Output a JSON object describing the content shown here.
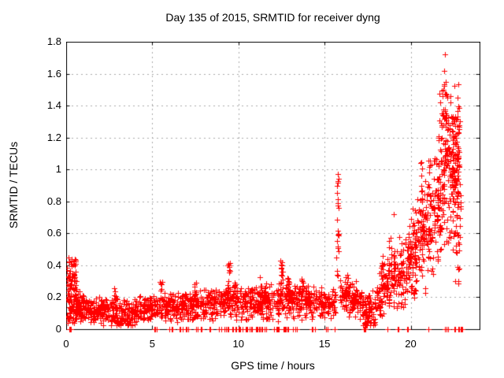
{
  "title": "Day 135 of 2015, SRMTID for receiver dyng",
  "chart_data": {
    "type": "scatter",
    "title": "Day 135 of 2015, SRMTID for receiver dyng",
    "xlabel": "GPS time / hours",
    "ylabel": "SRMTID / TECUs",
    "series_name": "SRMTID",
    "xlim": [
      0,
      24
    ],
    "ylim": [
      0,
      1.8
    ],
    "x_ticks": [
      0,
      5,
      10,
      15,
      20
    ],
    "x_tick_labels": [
      "0",
      "5",
      "10",
      "15",
      "20"
    ],
    "y_ticks": [
      0,
      0.2,
      0.4,
      0.6,
      0.8,
      1,
      1.2,
      1.4,
      1.6,
      1.8
    ],
    "y_tick_labels": [
      "0",
      "0.2",
      "0.4",
      "0.6",
      "0.8",
      "1",
      "1.2",
      "1.4",
      "1.6",
      "1.8"
    ],
    "grid": true,
    "grid_style": "dotted",
    "legend": "none",
    "marker": "plus",
    "marker_size_px": 7,
    "marker_color": "#ff0000",
    "grid_color": "#a8a8a8",
    "border_color": "#000000",
    "background": "#ffffff",
    "description": "Dense + marker scatter: flat noisy band ~0.1-0.2 TECUs from 0-15h, tall cluster 0.05-0.45 at 0-0.6h, isolated spike to 0.97 at 15.8h, dip near 17.5h, steep noisy rise after 19h peaking at 1.72 near 22h, data ends ~23h, many exact-zero points along the axis",
    "generator": {
      "seed": 1350,
      "bands": [
        {
          "x0": 0.05,
          "x1": 0.6,
          "n": 115,
          "y0": 0.24,
          "y1": 0.24,
          "s": 0.2,
          "u": 1
        },
        {
          "x0": 0.5,
          "x1": 1.3,
          "n": 90,
          "y0": 0.15,
          "y1": 0.13,
          "s": 0.05
        },
        {
          "x0": 1.3,
          "x1": 2.6,
          "n": 120,
          "y0": 0.12,
          "y1": 0.11,
          "s": 0.05
        },
        {
          "x0": 2.6,
          "x1": 4.0,
          "n": 140,
          "y0": 0.1,
          "y1": 0.1,
          "s": 0.05
        },
        {
          "x0": 4.0,
          "x1": 5.5,
          "n": 130,
          "y0": 0.12,
          "y1": 0.13,
          "s": 0.05
        },
        {
          "x0": 5.5,
          "x1": 7.0,
          "n": 130,
          "y0": 0.14,
          "y1": 0.14,
          "s": 0.05
        },
        {
          "x0": 7.0,
          "x1": 8.5,
          "n": 130,
          "y0": 0.15,
          "y1": 0.16,
          "s": 0.06
        },
        {
          "x0": 8.5,
          "x1": 10.0,
          "n": 130,
          "y0": 0.17,
          "y1": 0.17,
          "s": 0.06
        },
        {
          "x0": 10.0,
          "x1": 11.5,
          "n": 130,
          "y0": 0.17,
          "y1": 0.17,
          "s": 0.06
        },
        {
          "x0": 11.5,
          "x1": 13.0,
          "n": 130,
          "y0": 0.17,
          "y1": 0.18,
          "s": 0.07
        },
        {
          "x0": 13.0,
          "x1": 14.5,
          "n": 130,
          "y0": 0.18,
          "y1": 0.16,
          "s": 0.06
        },
        {
          "x0": 14.5,
          "x1": 15.65,
          "n": 100,
          "y0": 0.16,
          "y1": 0.17,
          "s": 0.05
        },
        {
          "x0": 15.9,
          "x1": 17.2,
          "n": 110,
          "y0": 0.21,
          "y1": 0.16,
          "s": 0.07
        },
        {
          "x0": 17.2,
          "x1": 18.0,
          "n": 80,
          "y0": 0.1,
          "y1": 0.12,
          "s": 0.07
        },
        {
          "x0": 18.0,
          "x1": 19.0,
          "n": 90,
          "y0": 0.2,
          "y1": 0.3,
          "s": 0.1
        },
        {
          "x0": 19.0,
          "x1": 20.0,
          "n": 110,
          "y0": 0.32,
          "y1": 0.4,
          "s": 0.13
        },
        {
          "x0": 20.0,
          "x1": 20.8,
          "n": 110,
          "y0": 0.45,
          "y1": 0.6,
          "s": 0.17
        },
        {
          "x0": 20.8,
          "x1": 21.6,
          "n": 110,
          "y0": 0.65,
          "y1": 0.8,
          "s": 0.22
        },
        {
          "x0": 21.6,
          "x1": 22.2,
          "n": 110,
          "y0": 0.9,
          "y1": 1.05,
          "s": 0.28
        },
        {
          "x0": 22.2,
          "x1": 22.9,
          "n": 130,
          "y0": 1.0,
          "y1": 1.0,
          "s": 0.32
        }
      ],
      "columns": [
        {
          "x": 2.85,
          "w": 0.12,
          "n": 8,
          "lo": 0.18,
          "hi": 0.3
        },
        {
          "x": 5.5,
          "w": 0.12,
          "n": 8,
          "lo": 0.18,
          "hi": 0.3
        },
        {
          "x": 6.9,
          "w": 0.12,
          "n": 6,
          "lo": 0.18,
          "hi": 0.26
        },
        {
          "x": 7.5,
          "w": 0.12,
          "n": 6,
          "lo": 0.2,
          "hi": 0.31
        },
        {
          "x": 9.45,
          "w": 0.14,
          "n": 14,
          "lo": 0.22,
          "hi": 0.43
        },
        {
          "x": 9.8,
          "w": 0.12,
          "n": 8,
          "lo": 0.2,
          "hi": 0.3
        },
        {
          "x": 11.3,
          "w": 0.12,
          "n": 8,
          "lo": 0.2,
          "hi": 0.33
        },
        {
          "x": 12.5,
          "w": 0.14,
          "n": 14,
          "lo": 0.24,
          "hi": 0.44
        },
        {
          "x": 12.9,
          "w": 0.12,
          "n": 8,
          "lo": 0.2,
          "hi": 0.32
        },
        {
          "x": 13.7,
          "w": 0.12,
          "n": 10,
          "lo": 0.2,
          "hi": 0.35
        },
        {
          "x": 15.75,
          "w": 0.14,
          "n": 22,
          "lo": 0.3,
          "hi": 0.95
        },
        {
          "x": 16.3,
          "w": 0.12,
          "n": 8,
          "lo": 0.2,
          "hi": 0.35
        },
        {
          "x": 18.35,
          "w": 0.14,
          "n": 12,
          "lo": 0.25,
          "hi": 0.47
        },
        {
          "x": 18.8,
          "w": 0.14,
          "n": 12,
          "lo": 0.3,
          "hi": 0.62
        },
        {
          "x": 19.9,
          "w": 0.14,
          "n": 10,
          "lo": 0.3,
          "hi": 0.65
        },
        {
          "x": 20.6,
          "w": 0.14,
          "n": 12,
          "lo": 0.6,
          "hi": 1.05
        },
        {
          "x": 22.0,
          "w": 0.14,
          "n": 14,
          "lo": 0.9,
          "hi": 1.6
        },
        {
          "x": 22.45,
          "w": 0.16,
          "n": 20,
          "lo": 0.8,
          "hi": 1.35
        },
        {
          "x": 22.7,
          "w": 0.14,
          "n": 16,
          "lo": 0.7,
          "hi": 1.3
        },
        {
          "x": 22.75,
          "w": 0.14,
          "n": 8,
          "lo": 0.25,
          "hi": 0.6
        }
      ],
      "outliers": [
        [
          0.15,
          0.45
        ],
        [
          15.78,
          0.97
        ],
        [
          15.72,
          0.9
        ],
        [
          22.0,
          1.72
        ],
        [
          21.95,
          1.62
        ],
        [
          22.05,
          1.55
        ],
        [
          21.9,
          1.5
        ],
        [
          22.1,
          1.47
        ],
        [
          21.7,
          1.42
        ],
        [
          22.3,
          1.42
        ],
        [
          21.6,
          1.2
        ],
        [
          20.6,
          0.96
        ],
        [
          19.0,
          0.72
        ],
        [
          22.6,
          0.3
        ],
        [
          22.8,
          0.38
        ],
        [
          21.3,
          0.45
        ]
      ],
      "zeros": [
        {
          "x0": 0.1,
          "x1": 0.3,
          "n": 5
        },
        {
          "x0": 5.1,
          "x1": 5.25,
          "n": 3
        },
        {
          "x0": 6.0,
          "x1": 6.2,
          "n": 3
        },
        {
          "x0": 6.5,
          "x1": 7.3,
          "n": 8
        },
        {
          "x0": 7.5,
          "x1": 7.9,
          "n": 5
        },
        {
          "x0": 8.2,
          "x1": 8.45,
          "n": 3
        },
        {
          "x0": 8.8,
          "x1": 9.9,
          "n": 10
        },
        {
          "x0": 10.0,
          "x1": 11.6,
          "n": 22
        },
        {
          "x0": 11.9,
          "x1": 12.9,
          "n": 14
        },
        {
          "x0": 13.1,
          "x1": 13.45,
          "n": 4
        },
        {
          "x0": 14.2,
          "x1": 14.45,
          "n": 3
        },
        {
          "x0": 15.0,
          "x1": 15.2,
          "n": 3
        },
        {
          "x0": 15.5,
          "x1": 15.62,
          "n": 2
        },
        {
          "x0": 17.25,
          "x1": 17.5,
          "n": 3
        },
        {
          "x0": 18.6,
          "x1": 18.8,
          "n": 2
        },
        {
          "x0": 19.2,
          "x1": 19.35,
          "n": 2
        },
        {
          "x0": 19.8,
          "x1": 19.9,
          "n": 2
        },
        {
          "x0": 21.0,
          "x1": 21.1,
          "n": 2
        },
        {
          "x0": 21.8,
          "x1": 22.2,
          "n": 5
        },
        {
          "x0": 22.5,
          "x1": 23.0,
          "n": 8
        }
      ]
    }
  }
}
